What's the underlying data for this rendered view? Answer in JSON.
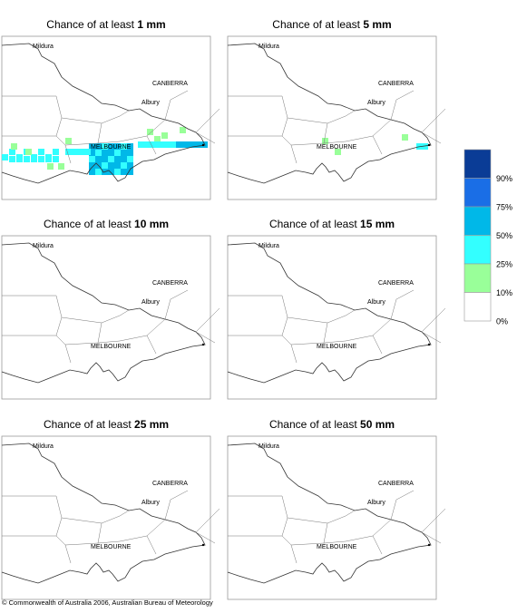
{
  "panels": [
    {
      "prefix": "Chance of at least ",
      "amount": "1 mm"
    },
    {
      "prefix": "Chance of at least ",
      "amount": "5 mm"
    },
    {
      "prefix": "Chance of at least ",
      "amount": "10 mm"
    },
    {
      "prefix": "Chance of at least ",
      "amount": "15 mm"
    },
    {
      "prefix": "Chance of at least ",
      "amount": "25 mm"
    },
    {
      "prefix": "Chance of at least ",
      "amount": "50 mm"
    }
  ],
  "map_labels": {
    "mildura": "Mildura",
    "canberra": "CANBERRA",
    "albury": "Albury",
    "melbourne": "MELBOURNE"
  },
  "legend": [
    {
      "label": "90%",
      "color": "#0a3c96"
    },
    {
      "label": "75%",
      "color": "#1a6ee6"
    },
    {
      "label": "50%",
      "color": "#00b8e8"
    },
    {
      "label": "25%",
      "color": "#33ffff"
    },
    {
      "label": "10%",
      "color": "#99ff99"
    },
    {
      "label": "0%",
      "color": "#ffffff"
    }
  ],
  "copyright": "© Commonwealth of Australia 2006, Australian Bureau of Meteorology"
}
